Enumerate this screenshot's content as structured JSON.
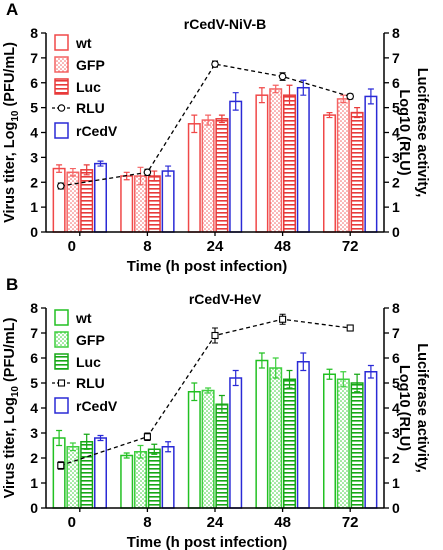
{
  "colors": {
    "wt": "#f04848",
    "GFP": "#f46464",
    "Luc": "#e83a3a",
    "rCedV": "#2a2ad6",
    "RLU": "#000000",
    "wt_hev": "#22c022",
    "GFP_hev": "#3ecf3e",
    "Luc_hev": "#16a816"
  },
  "chart_data": [
    {
      "type": "bar",
      "panel_label": "A",
      "title": "rCedV-NiV-B",
      "xlabel": "Time (h post infection)",
      "ylabel": "Virus titer, Log10 (PFU/mL)",
      "ylabel_parts": [
        "Virus titer, Log",
        "10",
        " (PFU/mL)"
      ],
      "y2label_lines": [
        "Luciferase activity,",
        "Log10 (RLU)"
      ],
      "categories": [
        "0",
        "8",
        "24",
        "48",
        "72"
      ],
      "ylim": [
        0,
        8
      ],
      "y2lim": [
        0,
        8
      ],
      "yticks": [
        "0",
        "1",
        "2",
        "3",
        "4",
        "5",
        "6",
        "7",
        "8"
      ],
      "legend_position": "top-left",
      "series": [
        {
          "name": "wt",
          "values": [
            2.55,
            2.25,
            4.35,
            5.5,
            4.7
          ],
          "errors": [
            0.15,
            0.15,
            0.35,
            0.3,
            0.1
          ]
        },
        {
          "name": "GFP",
          "values": [
            2.4,
            2.25,
            4.5,
            5.75,
            5.35
          ],
          "errors": [
            0.15,
            0.35,
            0.2,
            0.15,
            0.15
          ]
        },
        {
          "name": "Luc",
          "values": [
            2.5,
            2.25,
            4.55,
            5.5,
            4.8
          ],
          "errors": [
            0.2,
            0.2,
            0.15,
            0.4,
            0.2
          ]
        },
        {
          "name": "rCedV",
          "values": [
            2.75,
            2.45,
            5.25,
            5.8,
            5.45
          ],
          "errors": [
            0.1,
            0.2,
            0.35,
            0.3,
            0.3
          ]
        }
      ],
      "line_series": {
        "name": "RLU",
        "marker": "circle",
        "values": [
          1.85,
          2.4,
          6.75,
          6.25,
          5.45
        ],
        "errors": [
          0.12,
          0.12,
          0.12,
          0.15,
          0.1
        ]
      }
    },
    {
      "type": "bar",
      "panel_label": "B",
      "title": "rCedV-HeV",
      "xlabel": "Time (h post infection)",
      "ylabel": "Virus titer, Log10 (PFU/mL)",
      "ylabel_parts": [
        "Virus titer, Log",
        "10",
        " (PFU/mL)"
      ],
      "y2label_lines": [
        "Luciferase activity,",
        "Log10 (RLU)"
      ],
      "categories": [
        "0",
        "8",
        "24",
        "48",
        "72"
      ],
      "ylim": [
        0,
        8
      ],
      "y2lim": [
        0,
        8
      ],
      "yticks": [
        "0",
        "1",
        "2",
        "3",
        "4",
        "5",
        "6",
        "7",
        "8"
      ],
      "legend_position": "top-left",
      "series": [
        {
          "name": "wt",
          "values": [
            2.8,
            2.1,
            4.65,
            5.9,
            5.35
          ],
          "errors": [
            0.3,
            0.1,
            0.35,
            0.3,
            0.2
          ]
        },
        {
          "name": "GFP",
          "values": [
            2.45,
            2.25,
            4.7,
            5.6,
            5.15
          ],
          "errors": [
            0.15,
            0.25,
            0.1,
            0.4,
            0.3
          ]
        },
        {
          "name": "Luc",
          "values": [
            2.65,
            2.35,
            4.15,
            5.15,
            5.0
          ],
          "errors": [
            0.3,
            0.2,
            0.35,
            0.35,
            0.35
          ]
        },
        {
          "name": "rCedV",
          "values": [
            2.8,
            2.45,
            5.2,
            5.85,
            5.45
          ],
          "errors": [
            0.1,
            0.2,
            0.3,
            0.35,
            0.25
          ]
        }
      ],
      "line_series": {
        "name": "RLU",
        "marker": "square",
        "values": [
          1.7,
          2.85,
          6.9,
          7.55,
          7.2
        ],
        "errors": [
          0.15,
          0.15,
          0.3,
          0.2,
          0.12
        ]
      }
    }
  ]
}
